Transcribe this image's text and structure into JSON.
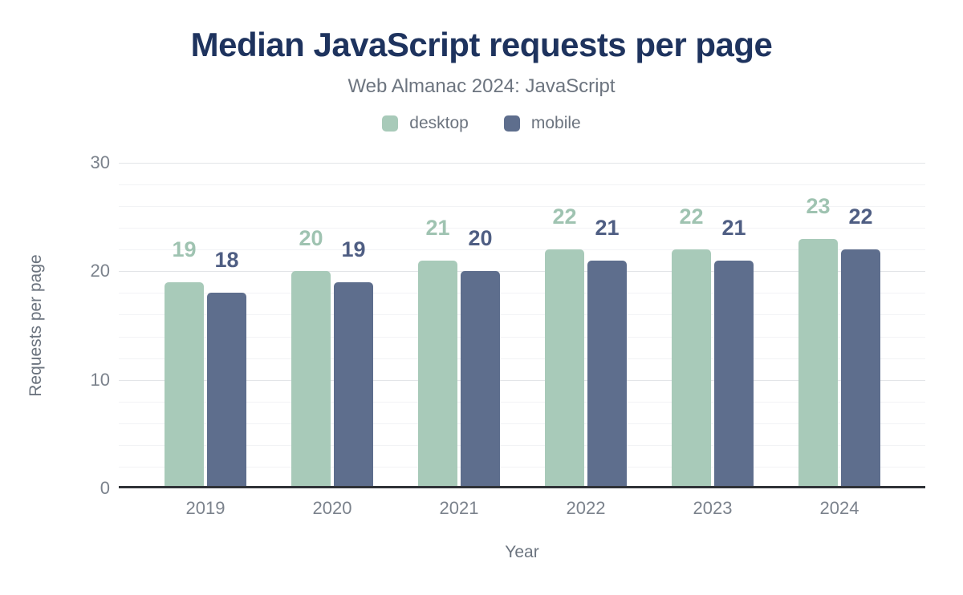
{
  "header": {
    "title": "Median JavaScript requests per page",
    "subtitle": "Web Almanac 2024: JavaScript"
  },
  "palette": {
    "title_color": "#1e335e",
    "text_gray": "#6c747f",
    "tick_gray": "#7b828c",
    "axis_line": "#2f3237",
    "grid_major": "#e3e5e8",
    "grid_minor": "#f2f3f5"
  },
  "chart_data": {
    "type": "bar",
    "title": "Median JavaScript requests per page",
    "subtitle": "Web Almanac 2024: JavaScript",
    "categories": [
      "2019",
      "2020",
      "2021",
      "2022",
      "2023",
      "2024"
    ],
    "series": [
      {
        "name": "desktop",
        "color": "#a8cab9",
        "label_color": "#9fc3b1",
        "values": [
          19,
          20,
          21,
          22,
          22,
          23
        ]
      },
      {
        "name": "mobile",
        "color": "#5e6e8d",
        "label_color": "#4f5e83",
        "values": [
          18,
          19,
          20,
          21,
          21,
          22
        ]
      }
    ],
    "xlabel": "Year",
    "ylabel": "Requests per page",
    "ylim": [
      0,
      30
    ],
    "yticks": [
      0,
      10,
      20,
      30
    ],
    "minor_grid_step": 2,
    "grid": true,
    "legend_position": "top",
    "data_labels": true
  }
}
